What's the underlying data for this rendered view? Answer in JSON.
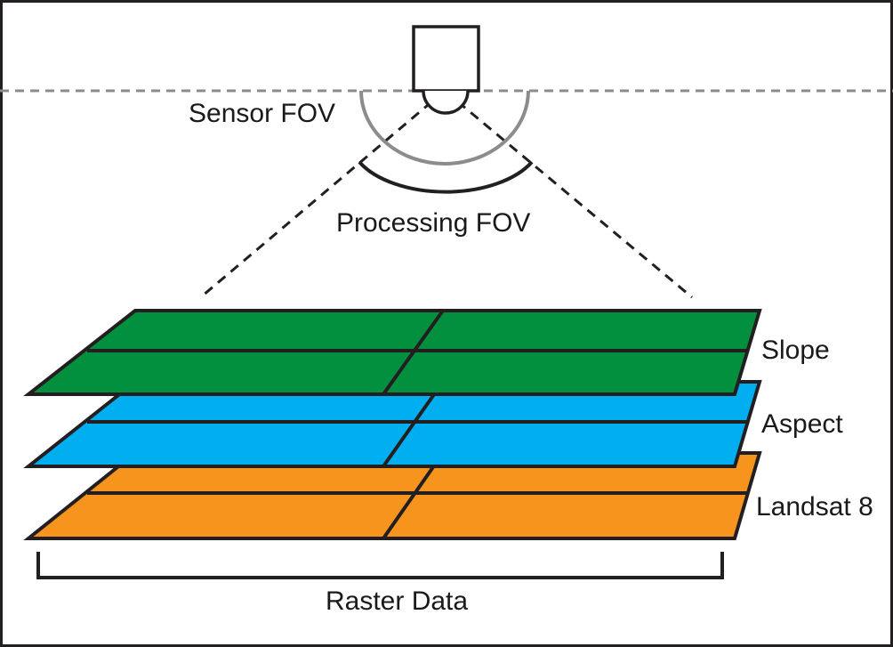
{
  "labels": {
    "sensor_fov": "Sensor FOV",
    "processing_fov": "Processing FOV",
    "raster_data": "Raster Data"
  },
  "layers": [
    {
      "name": "Slope",
      "color": "#02903f"
    },
    {
      "name": "Aspect",
      "color": "#01aeef"
    },
    {
      "name": "Landsat 8",
      "color": "#f7941d"
    }
  ],
  "colors": {
    "outline": "#231f20",
    "sensor_arc": "#8c8c8c",
    "background": "#ffffff"
  }
}
